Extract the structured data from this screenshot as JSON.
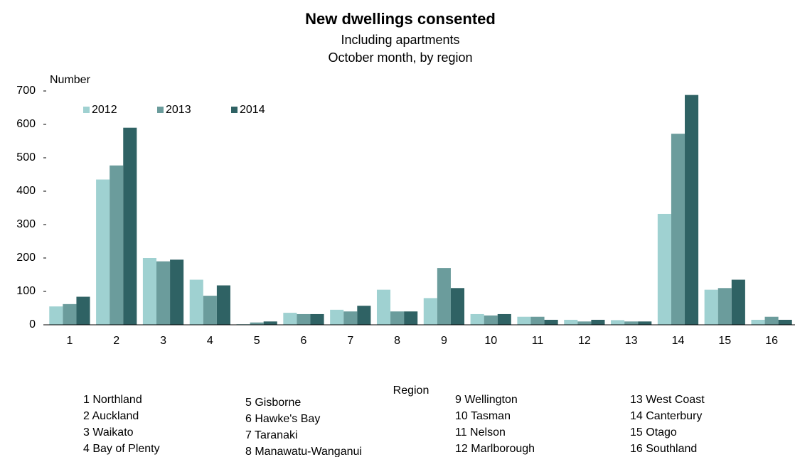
{
  "chart_data": {
    "type": "bar",
    "title": "New dwellings consented",
    "subtitle": [
      "Including apartments",
      "October month, by region"
    ],
    "y_label": "Number",
    "x_label": "Region",
    "categories": [
      "1",
      "2",
      "3",
      "4",
      "5",
      "6",
      "7",
      "8",
      "9",
      "10",
      "11",
      "12",
      "13",
      "14",
      "15",
      "16"
    ],
    "series": [
      {
        "name": "2012",
        "color": "#9fd1d1",
        "values": [
          55,
          435,
          200,
          135,
          2,
          36,
          45,
          105,
          80,
          32,
          24,
          15,
          14,
          332,
          105,
          15
        ]
      },
      {
        "name": "2013",
        "color": "#6b9c9c",
        "values": [
          62,
          477,
          190,
          87,
          7,
          32,
          40,
          40,
          170,
          28,
          24,
          10,
          10,
          572,
          110,
          24
        ]
      },
      {
        "name": "2014",
        "color": "#2f6264",
        "values": [
          84,
          590,
          195,
          118,
          10,
          32,
          57,
          40,
          110,
          32,
          15,
          15,
          10,
          688,
          135,
          15
        ]
      }
    ],
    "ylim": [
      0,
      700
    ],
    "yticks": [
      0,
      100,
      200,
      300,
      400,
      500,
      600,
      700
    ],
    "grid": false,
    "legend": "top-left",
    "regions": [
      [
        "1 Northland",
        "2 Auckland",
        "3 Waikato",
        "4 Bay of Plenty"
      ],
      [
        "5 Gisborne",
        "6 Hawke's Bay",
        "7 Taranaki",
        "8 Manawatu-Wanganui"
      ],
      [
        "9 Wellington",
        "10 Tasman",
        "11 Nelson",
        "12 Marlborough"
      ],
      [
        "13 West Coast",
        "14 Canterbury",
        "15 Otago",
        "16 Southland"
      ]
    ]
  }
}
